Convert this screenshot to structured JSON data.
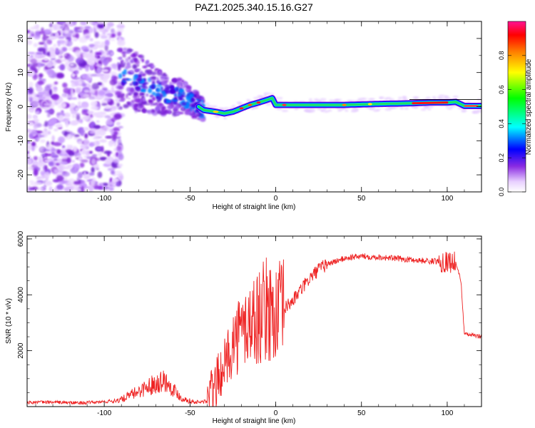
{
  "title": "PAZ1.2025.340.15.16.G27",
  "chart_data": [
    {
      "type": "heatmap",
      "name": "spectrogram",
      "xlabel": "Height of straight line (km)",
      "ylabel": "Frequency (Hz)",
      "xlim": [
        -145,
        120
      ],
      "ylim": [
        -25,
        25
      ],
      "xticks": [
        -100,
        -50,
        0,
        50,
        100
      ],
      "yticks": [
        -20,
        -10,
        0,
        10,
        20
      ],
      "tick_labels_x": [
        "-100",
        "-50",
        "0",
        "50",
        "100"
      ],
      "tick_labels_y": [
        "-20",
        "-10",
        "0",
        "10",
        "20"
      ],
      "colorbar": {
        "label": "Normalized spectral amplitude",
        "range": [
          0,
          1
        ],
        "ticks": [
          0.0,
          0.2,
          0.4,
          0.6,
          0.8
        ],
        "tick_labels": [
          "0.0",
          "0.2",
          "0.4",
          "0.6",
          "0.8"
        ],
        "colormap_stops": [
          "#ffffff",
          "#8a2be2",
          "#0000ff",
          "#00ffff",
          "#00ff00",
          "#ffff00",
          "#ff8000",
          "#ff0000",
          "#ff1493"
        ]
      },
      "ridge": {
        "x": [
          -95,
          -85,
          -75,
          -65,
          -55,
          -48,
          -42,
          -35,
          -30,
          -25,
          -20,
          -15,
          -10,
          -5,
          -2,
          0,
          10,
          20,
          40,
          60,
          80,
          90,
          100,
          105,
          110,
          120
        ],
        "y": [
          9,
          8,
          6,
          4,
          3,
          1,
          -1,
          -1.5,
          -2,
          -1.5,
          -0.5,
          0.5,
          1.2,
          2,
          2.5,
          0.5,
          0.5,
          0.5,
          0.5,
          0.8,
          1,
          1.2,
          1.2,
          1.4,
          0.2,
          0.2
        ]
      },
      "noise_region_x": [
        -145,
        -90
      ]
    },
    {
      "type": "line",
      "name": "snr",
      "xlabel": "Height of straight line (km)",
      "ylabel": "SNR (10 * v/v)",
      "xlim": [
        -145,
        120
      ],
      "ylim": [
        0,
        6100
      ],
      "xticks": [
        -100,
        -50,
        0,
        50,
        100
      ],
      "yticks": [
        2000,
        4000,
        6000
      ],
      "tick_labels_x": [
        "-100",
        "-50",
        "0",
        "50",
        "100"
      ],
      "tick_labels_y": [
        "2000",
        "4000",
        "6000"
      ],
      "color": "#ee2222",
      "series": [
        {
          "name": "SNR",
          "x": [
            -145,
            -130,
            -115,
            -105,
            -95,
            -90,
            -85,
            -80,
            -75,
            -70,
            -65,
            -60,
            -55,
            -50,
            -45,
            -40,
            -35,
            -30,
            -25,
            -20,
            -15,
            -10,
            -5,
            0,
            5,
            10,
            15,
            20,
            25,
            30,
            35,
            40,
            45,
            50,
            60,
            70,
            80,
            90,
            100,
            105,
            108,
            110,
            115,
            120
          ],
          "y": [
            150,
            160,
            130,
            150,
            200,
            250,
            400,
            550,
            700,
            850,
            950,
            650,
            300,
            200,
            150,
            200,
            800,
            1500,
            2300,
            2700,
            3000,
            3200,
            3500,
            3300,
            3500,
            3800,
            4200,
            4600,
            4900,
            5100,
            5200,
            5300,
            5350,
            5380,
            5350,
            5300,
            5250,
            5200,
            5200,
            5150,
            4500,
            2600,
            2550,
            2500
          ]
        }
      ]
    }
  ]
}
